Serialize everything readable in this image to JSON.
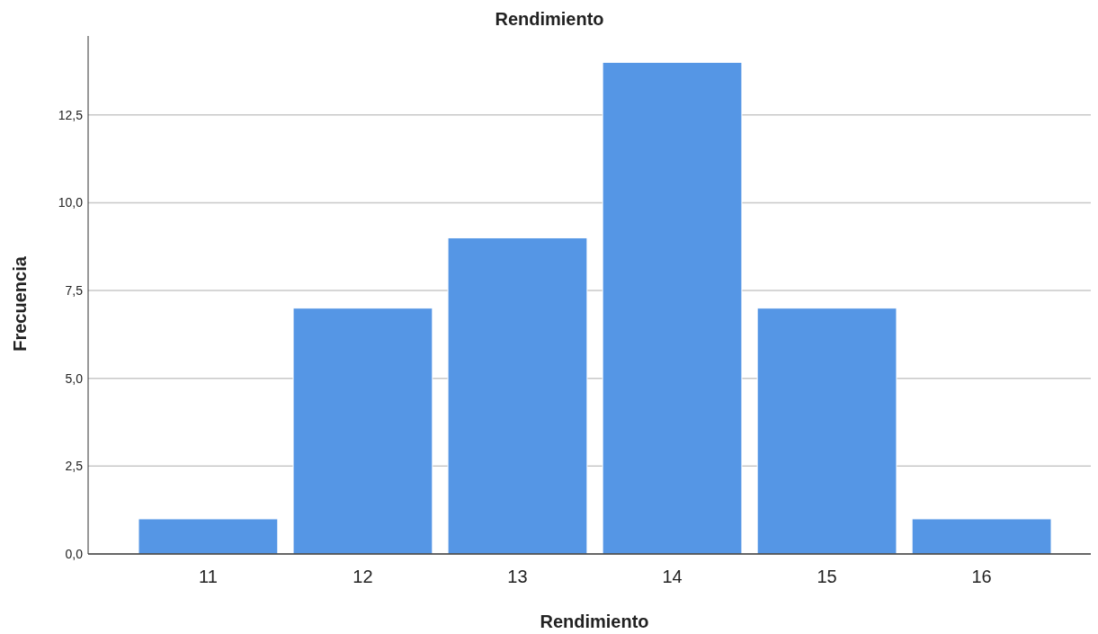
{
  "chart_data": {
    "type": "bar",
    "title": "Rendimiento",
    "xlabel": "Rendimiento",
    "ylabel": "Frecuencia",
    "categories": [
      "11",
      "12",
      "13",
      "14",
      "15",
      "16"
    ],
    "values": [
      1,
      7,
      9,
      14,
      7,
      1
    ],
    "color": "#5596e5",
    "ylim": [
      0,
      14.75
    ],
    "yticks": [
      {
        "value": 0,
        "label": "0,0"
      },
      {
        "value": 2.5,
        "label": "2,5"
      },
      {
        "value": 5,
        "label": "5,0"
      },
      {
        "value": 7.5,
        "label": "7,5"
      },
      {
        "value": 10,
        "label": "10,0"
      },
      {
        "value": 12.5,
        "label": "12,5"
      }
    ],
    "grid": "y"
  }
}
